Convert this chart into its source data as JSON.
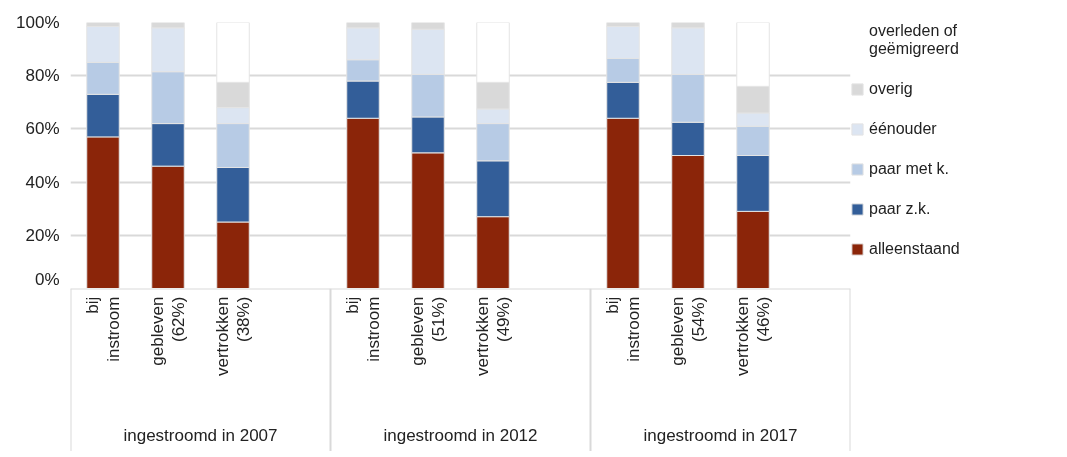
{
  "chart_data": {
    "type": "bar",
    "stacked": true,
    "categories": [
      "bij instroom",
      "gebleven (62%)",
      "vertrokken (38%)",
      null,
      "bij instroom",
      "gebleven (51%)",
      "vertrokken (49%)",
      null,
      "bij instroom",
      "gebleven (54%)",
      "vertrokken (46%)",
      null
    ],
    "series": [
      {
        "name": "alleenstaand",
        "color": "#8b2509",
        "values": [
          57,
          46,
          25,
          null,
          64,
          51,
          27,
          null,
          64,
          50,
          29,
          null
        ]
      },
      {
        "name": "paar z.k.",
        "color": "#335e99",
        "values": [
          16,
          16,
          20.5,
          null,
          14,
          13.5,
          21,
          null,
          13.5,
          12.5,
          21,
          null
        ]
      },
      {
        "name": "paar met k.",
        "color": "#b7cbe5",
        "values": [
          12,
          19.5,
          16.5,
          null,
          8,
          16,
          14,
          null,
          9,
          18,
          11,
          null
        ]
      },
      {
        "name": "éénouder",
        "color": "#dce5f2",
        "values": [
          13.5,
          16.5,
          6,
          null,
          12,
          17,
          5.5,
          null,
          12,
          17.5,
          5,
          null
        ]
      },
      {
        "name": "overig",
        "color": "#d9d9d9",
        "values": [
          1.5,
          2,
          9.5,
          null,
          2,
          2.5,
          10,
          null,
          1.5,
          2,
          10,
          null
        ]
      },
      {
        "name": "overleden of geëmigreerd",
        "color": "#ffffff",
        "values": [
          0,
          0,
          22.5,
          null,
          0,
          0,
          22.5,
          null,
          0,
          0,
          24,
          null
        ]
      }
    ],
    "ylim": [
      0,
      100
    ],
    "yticks": [
      {
        "value": 0,
        "label": "0%"
      },
      {
        "value": 20,
        "label": "20%"
      },
      {
        "value": 40,
        "label": "40%"
      },
      {
        "value": 60,
        "label": "60%"
      },
      {
        "value": 80,
        "label": "80%"
      },
      {
        "value": 100,
        "label": "100%"
      }
    ],
    "grid": "y",
    "legend": "right",
    "annotations": [
      "ingestroomd in 2007",
      "ingestroomd in 2012",
      "ingestroomd in 2017"
    ]
  }
}
